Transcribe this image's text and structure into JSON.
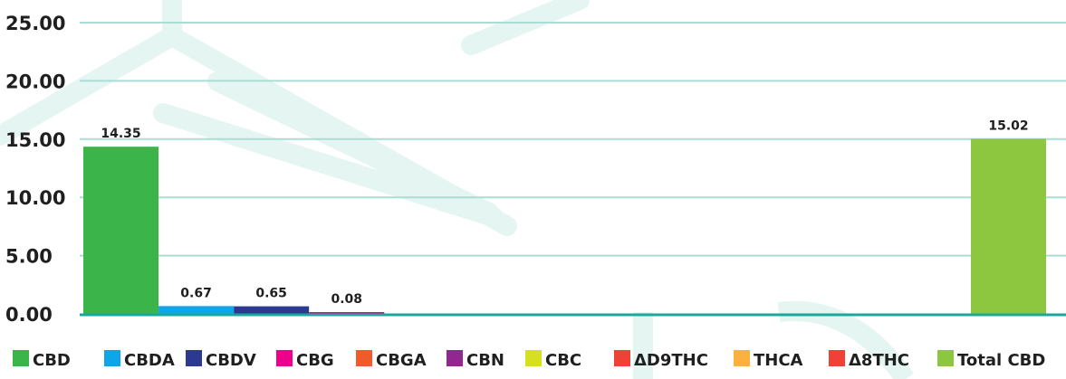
{
  "chart_data": {
    "type": "bar",
    "categories": [
      "CBD",
      "CBDA",
      "CBDV",
      "CBG",
      "CBGA",
      "CBN",
      "CBC",
      "ΔD9THC",
      "THCA",
      "Δ8THC",
      "Total CBD"
    ],
    "values": [
      14.35,
      0.67,
      0.65,
      0.08,
      0,
      0,
      0,
      0,
      0,
      0,
      15.02
    ],
    "data_labels": [
      "14.35",
      "0.67",
      "0.65",
      "0.08",
      "",
      "",
      "",
      "",
      "",
      "",
      "15.02"
    ],
    "colors": [
      "#3bb54a",
      "#0ea5e9",
      "#2b3990",
      "#ec008c",
      "#f15a29",
      "#92278f",
      "#d7df23",
      "#ef4136",
      "#fbb040",
      "#ef4136",
      "#8dc63f"
    ],
    "ylim": [
      0,
      25
    ],
    "yticks": [
      "0.00",
      "5.00",
      "10.00",
      "15.00",
      "20.00",
      "25.00"
    ],
    "grid": true,
    "legend": "bottom",
    "title": "",
    "xlabel": "",
    "ylabel": ""
  },
  "style": {
    "grid_color": "#a9ddd6",
    "axis_color": "#1aa89a",
    "watermark_color": "#e4f5f2"
  }
}
